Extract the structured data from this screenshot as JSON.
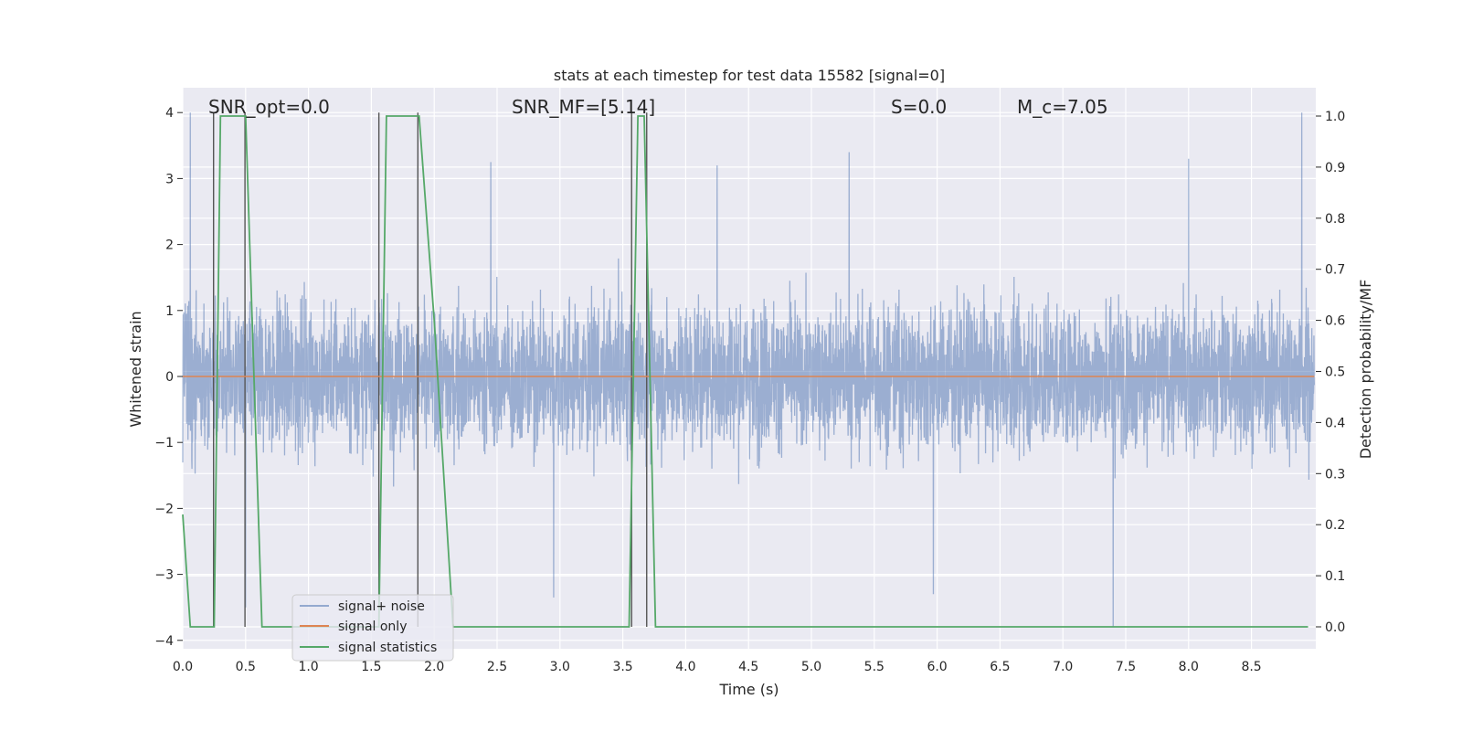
{
  "chart_data": {
    "type": "line",
    "title": "stats at each timestep for test data 15582 [signal=0]",
    "xlabel": "Time (s)",
    "ylabel": "Whitened strain",
    "ylabel_right": "Detection probability/MF",
    "xlim": [
      0.0,
      9.0
    ],
    "ylim": [
      -4.15,
      4.4
    ],
    "ylim_right": [
      -0.048,
      1.052
    ],
    "xticks": [
      "0.0",
      "0.5",
      "1.0",
      "1.5",
      "2.0",
      "2.5",
      "3.0",
      "3.5",
      "4.0",
      "4.5",
      "5.0",
      "5.5",
      "6.0",
      "6.5",
      "7.0",
      "7.5",
      "8.0",
      "8.5"
    ],
    "yticks": [
      "4",
      "3",
      "2",
      "1",
      "0",
      "−1",
      "−2",
      "−3",
      "−4"
    ],
    "yticks_right": [
      "1.0",
      "0.9",
      "0.8",
      "0.7",
      "0.6",
      "0.5",
      "0.4",
      "0.3",
      "0.2",
      "0.1",
      "0.0"
    ],
    "grid": true,
    "legend_placement": "lower-left",
    "annotations": [
      "SNR_opt=0.0",
      "SNR_MF=[5.14]",
      "S=0.0",
      "M_c=7.05"
    ],
    "series": [
      {
        "name": "signal+ noise",
        "color": "#4c72b0",
        "description_values": "noise strain, roughly -1.5..1.7 dense band with spikes to about ±4",
        "peaks": [
          {
            "x": 0.06,
            "y": 4.0
          },
          {
            "x": 0.5,
            "y": -3.5
          },
          {
            "x": 1.87,
            "y": 3.2
          },
          {
            "x": 2.45,
            "y": 3.25
          },
          {
            "x": 2.95,
            "y": -3.35
          },
          {
            "x": 4.25,
            "y": 3.2
          },
          {
            "x": 5.3,
            "y": 3.4
          },
          {
            "x": 5.97,
            "y": -3.3
          },
          {
            "x": 7.4,
            "y": -3.8
          },
          {
            "x": 8.0,
            "y": 3.3
          },
          {
            "x": 8.9,
            "y": 4.0
          }
        ]
      },
      {
        "name": "signal only",
        "color": "#dd8452",
        "x": [
          0.0,
          9.0
        ],
        "y": [
          0.0,
          0.0
        ]
      },
      {
        "name": "signal statistics",
        "color": "#55a868",
        "axis": "right",
        "x": [
          0.0,
          0.06,
          0.25,
          0.3,
          0.5,
          0.63,
          1.56,
          1.62,
          1.88,
          2.0,
          2.15,
          3.55,
          3.62,
          3.67,
          3.76,
          3.9,
          8.95
        ],
        "y": [
          0.22,
          0.0,
          0.0,
          1.0,
          1.0,
          0.0,
          0.0,
          1.0,
          1.0,
          0.6,
          0.0,
          0.0,
          1.0,
          1.0,
          0.0,
          0.0,
          0.0
        ]
      }
    ],
    "vlines": [
      0.245,
      0.495,
      1.56,
      1.87,
      3.57,
      3.69
    ]
  }
}
